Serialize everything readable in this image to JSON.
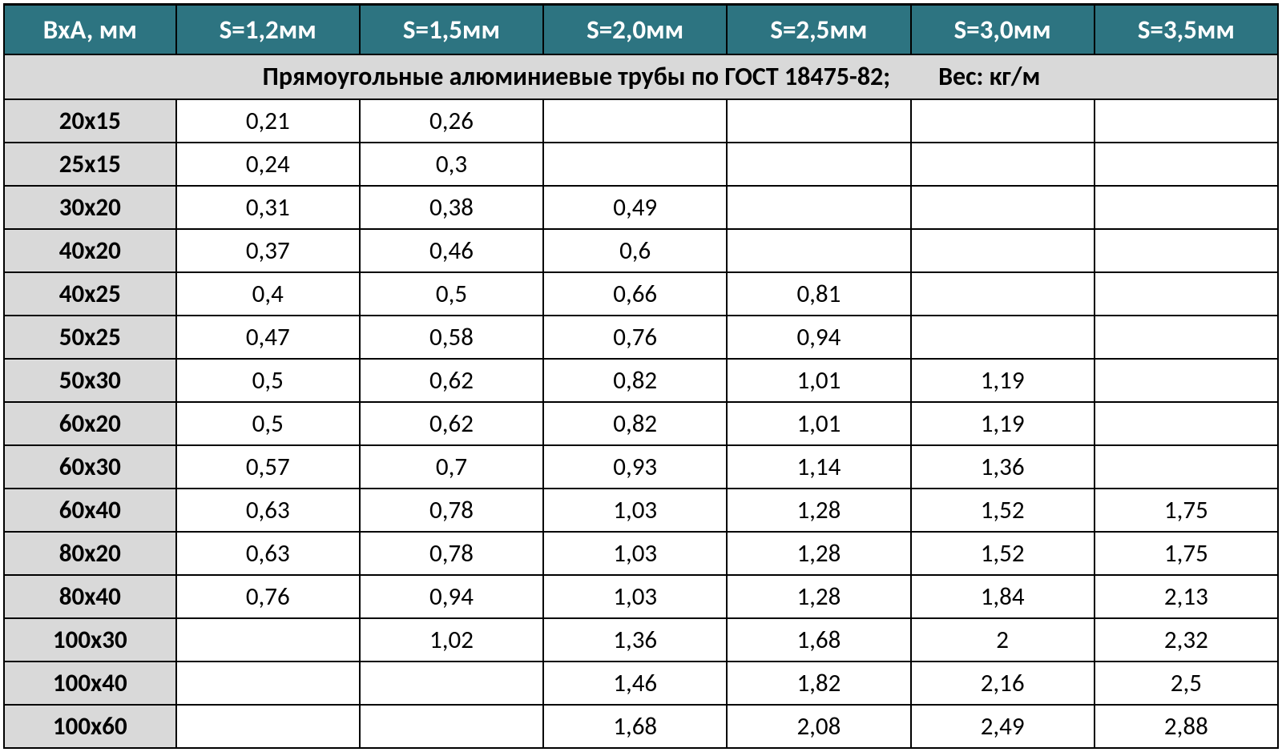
{
  "table": {
    "type": "table",
    "header_bg": "#2d7481",
    "header_fg": "#ffffff",
    "rowlabel_bg": "#d9d9d9",
    "cell_bg": "#ffffff",
    "border_color": "#000000",
    "font_family": "Calibri, Arial, sans-serif",
    "header_fontsize": 33,
    "subtitle_fontsize": 32,
    "cell_fontsize": 31,
    "columns": [
      "ВхА, мм",
      "S=1,2мм",
      "S=1,5мм",
      "S=2,0мм",
      "S=2,5мм",
      "S=3,0мм",
      "S=3,5мм"
    ],
    "subtitle_main": "Прямоугольные   алюминиевые трубы по ГОСТ  18475-82;",
    "subtitle_right": "Вес: кг/м",
    "rows": [
      {
        "label": "20х15",
        "cells": [
          "0,21",
          "0,26",
          "",
          "",
          "",
          ""
        ]
      },
      {
        "label": "25х15",
        "cells": [
          "0,24",
          "0,3",
          "",
          "",
          "",
          ""
        ]
      },
      {
        "label": "30х20",
        "cells": [
          "0,31",
          "0,38",
          "0,49",
          "",
          "",
          ""
        ]
      },
      {
        "label": "40х20",
        "cells": [
          "0,37",
          "0,46",
          "0,6",
          "",
          "",
          ""
        ]
      },
      {
        "label": "40х25",
        "cells": [
          "0,4",
          "0,5",
          "0,66",
          "0,81",
          "",
          ""
        ]
      },
      {
        "label": "50х25",
        "cells": [
          "0,47",
          "0,58",
          "0,76",
          "0,94",
          "",
          ""
        ]
      },
      {
        "label": "50х30",
        "cells": [
          "0,5",
          "0,62",
          "0,82",
          "1,01",
          "1,19",
          ""
        ]
      },
      {
        "label": "60х20",
        "cells": [
          "0,5",
          "0,62",
          "0,82",
          "1,01",
          "1,19",
          ""
        ]
      },
      {
        "label": "60х30",
        "cells": [
          "0,57",
          "0,7",
          "0,93",
          "1,14",
          "1,36",
          ""
        ]
      },
      {
        "label": "60х40",
        "cells": [
          "0,63",
          "0,78",
          "1,03",
          "1,28",
          "1,52",
          "1,75"
        ]
      },
      {
        "label": "80х20",
        "cells": [
          "0,63",
          "0,78",
          "1,03",
          "1,28",
          "1,52",
          "1,75"
        ]
      },
      {
        "label": "80х40",
        "cells": [
          "0,76",
          "0,94",
          "1,03",
          "1,28",
          "1,84",
          "2,13"
        ]
      },
      {
        "label": "100х30",
        "cells": [
          "",
          "1,02",
          "1,36",
          "1,68",
          "2",
          "2,32"
        ]
      },
      {
        "label": "100х40",
        "cells": [
          "",
          "",
          "1,46",
          "1,82",
          "2,16",
          "2,5"
        ]
      },
      {
        "label": "100х60",
        "cells": [
          "",
          "",
          "1,68",
          "2,08",
          "2,49",
          "2,88"
        ]
      }
    ]
  }
}
